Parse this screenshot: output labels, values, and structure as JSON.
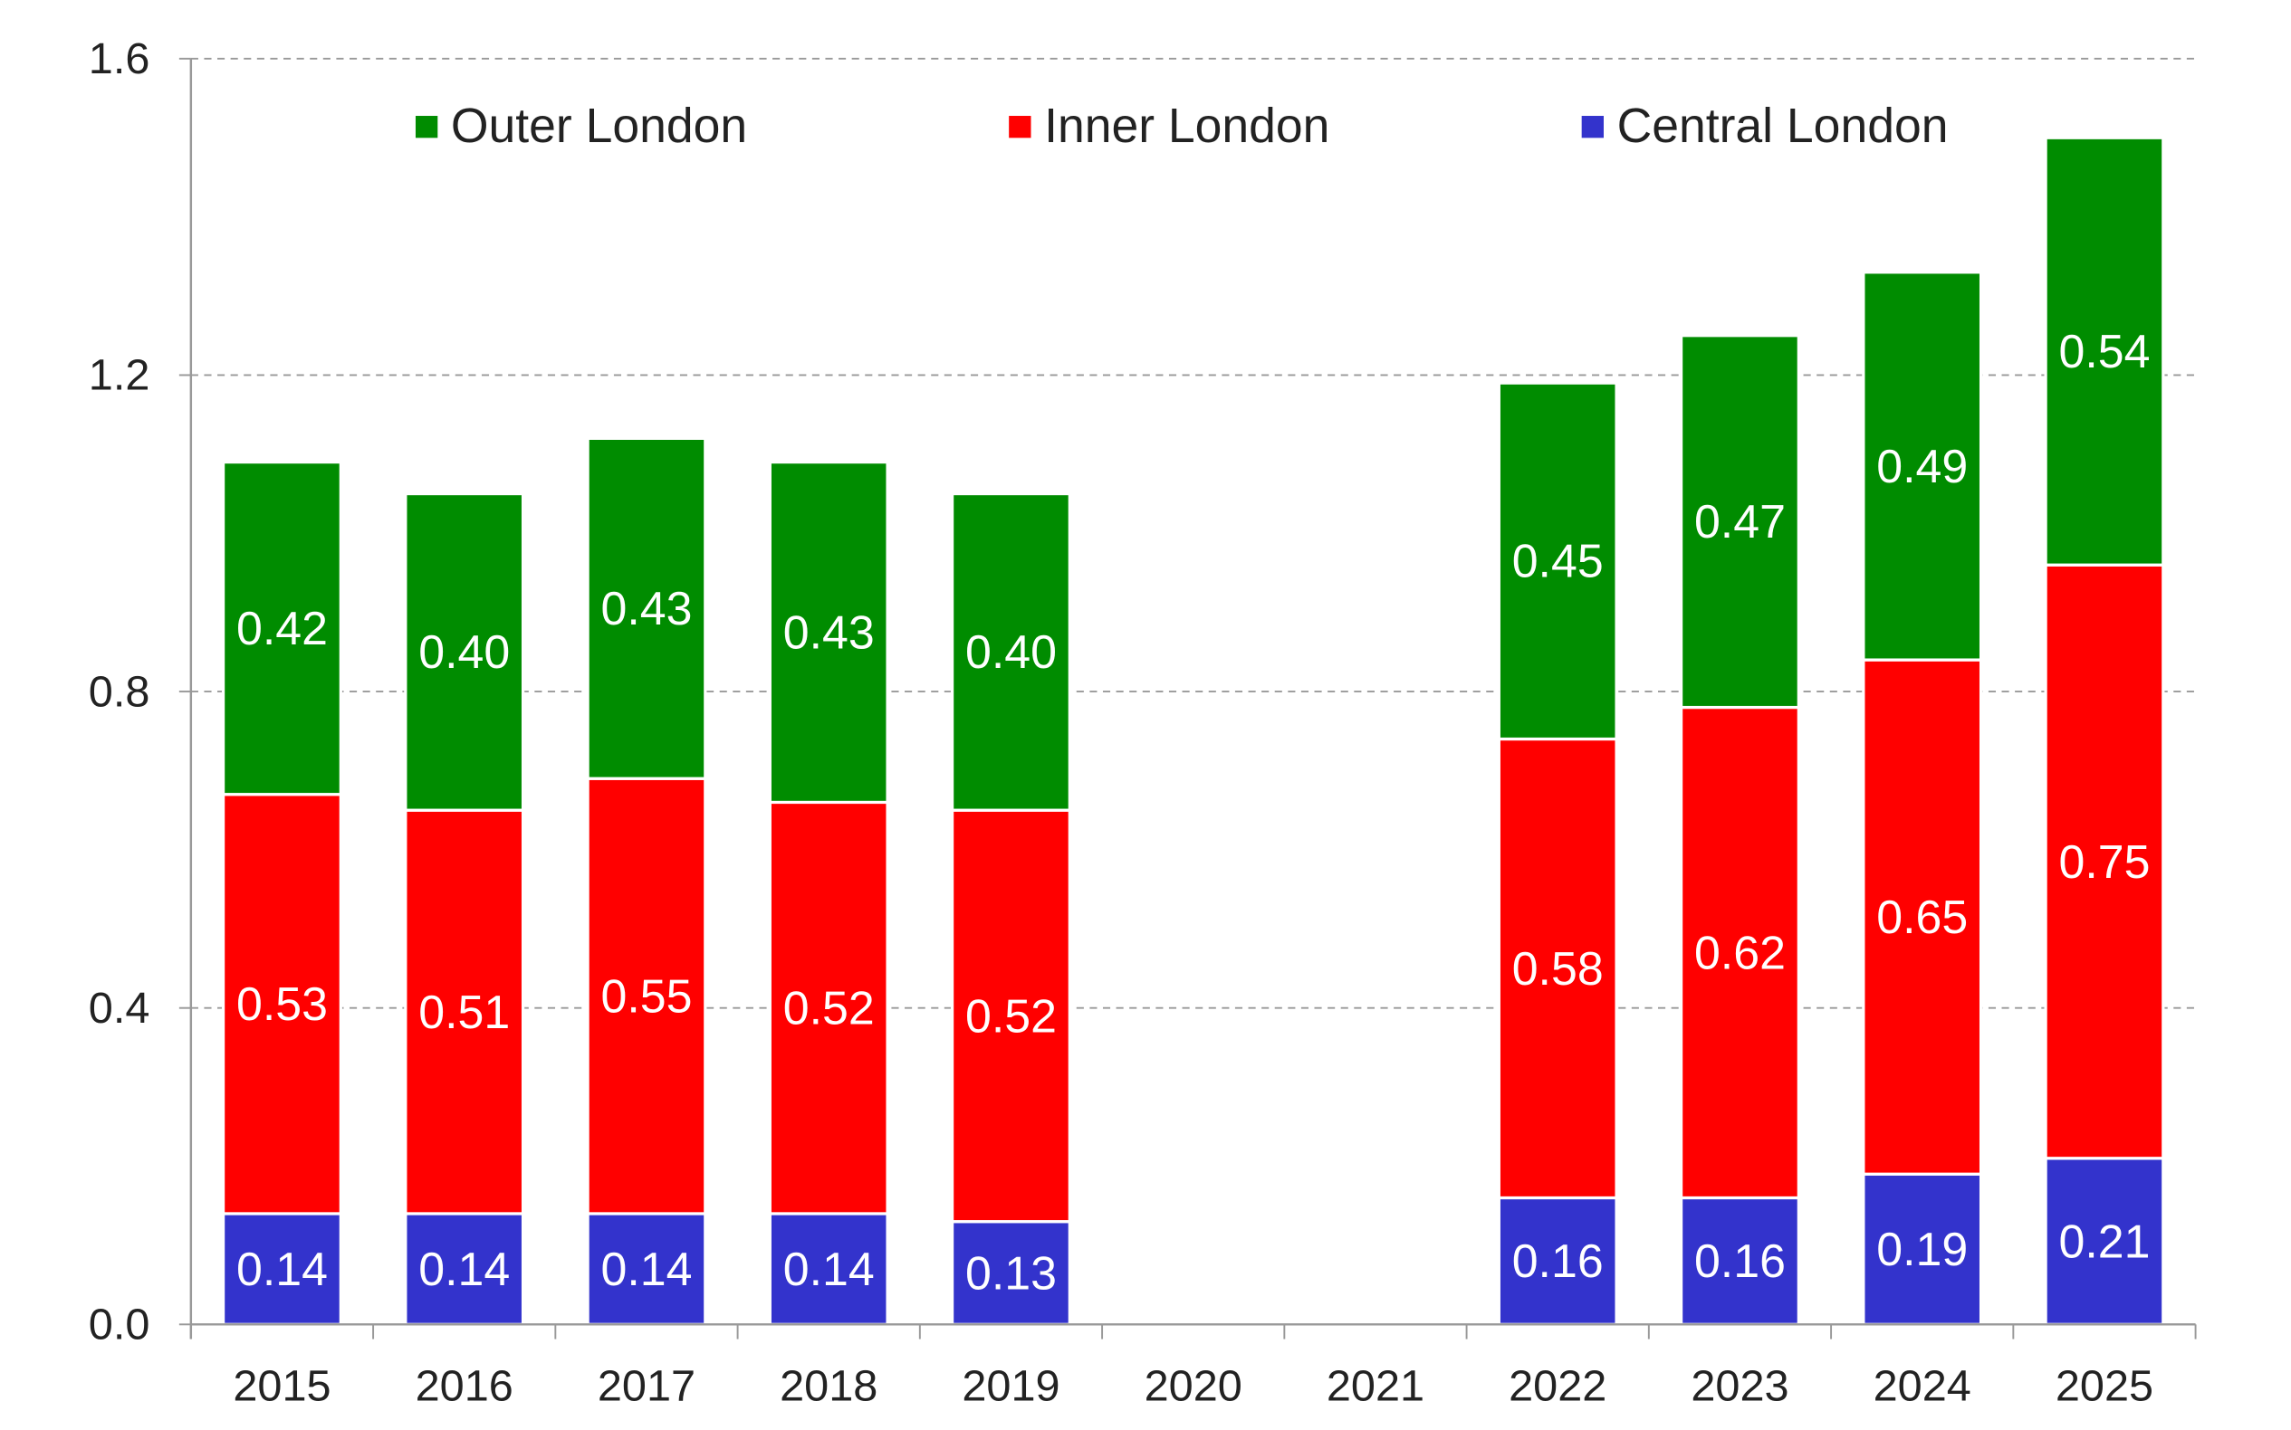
{
  "chart_data": {
    "type": "bar",
    "stacked": true,
    "categories": [
      "2015",
      "2016",
      "2017",
      "2018",
      "2019",
      "2020",
      "2021",
      "2022",
      "2023",
      "2024",
      "2025"
    ],
    "series": [
      {
        "name": "Central London",
        "color": "#3333cc",
        "values": [
          0.14,
          0.14,
          0.14,
          0.14,
          0.13,
          null,
          null,
          0.16,
          0.16,
          0.19,
          0.21
        ],
        "labels": [
          "0.14",
          "0.14",
          "0.14",
          "0.14",
          "0.13",
          "",
          "",
          "0.16",
          "0.16",
          "0.19",
          "0.21"
        ]
      },
      {
        "name": "Inner London",
        "color": "#ff0000",
        "values": [
          0.53,
          0.51,
          0.55,
          0.52,
          0.52,
          null,
          null,
          0.58,
          0.62,
          0.65,
          0.75
        ],
        "labels": [
          "0.53",
          "0.51",
          "0.55",
          "0.52",
          "0.52",
          "",
          "",
          "0.58",
          "0.62",
          "0.65",
          "0.75"
        ]
      },
      {
        "name": "Outer London",
        "color": "#008c00",
        "values": [
          0.42,
          0.4,
          0.43,
          0.43,
          0.4,
          null,
          null,
          0.45,
          0.47,
          0.49,
          0.54
        ],
        "labels": [
          "0.42",
          "0.40",
          "0.43",
          "0.43",
          "0.40",
          "",
          "",
          "0.45",
          "0.47",
          "0.49",
          "0.54"
        ]
      }
    ],
    "legend_order": [
      "Outer London",
      "Inner London",
      "Central London"
    ],
    "ylim": [
      0,
      1.6
    ],
    "yticks": [
      "0.0",
      "0.4",
      "0.8",
      "1.2",
      "1.6"
    ],
    "yticks_values": [
      0,
      0.4,
      0.8,
      1.2,
      1.6
    ],
    "grid": true,
    "legend_position": "top",
    "title": "",
    "xlabel": "",
    "ylabel": ""
  }
}
